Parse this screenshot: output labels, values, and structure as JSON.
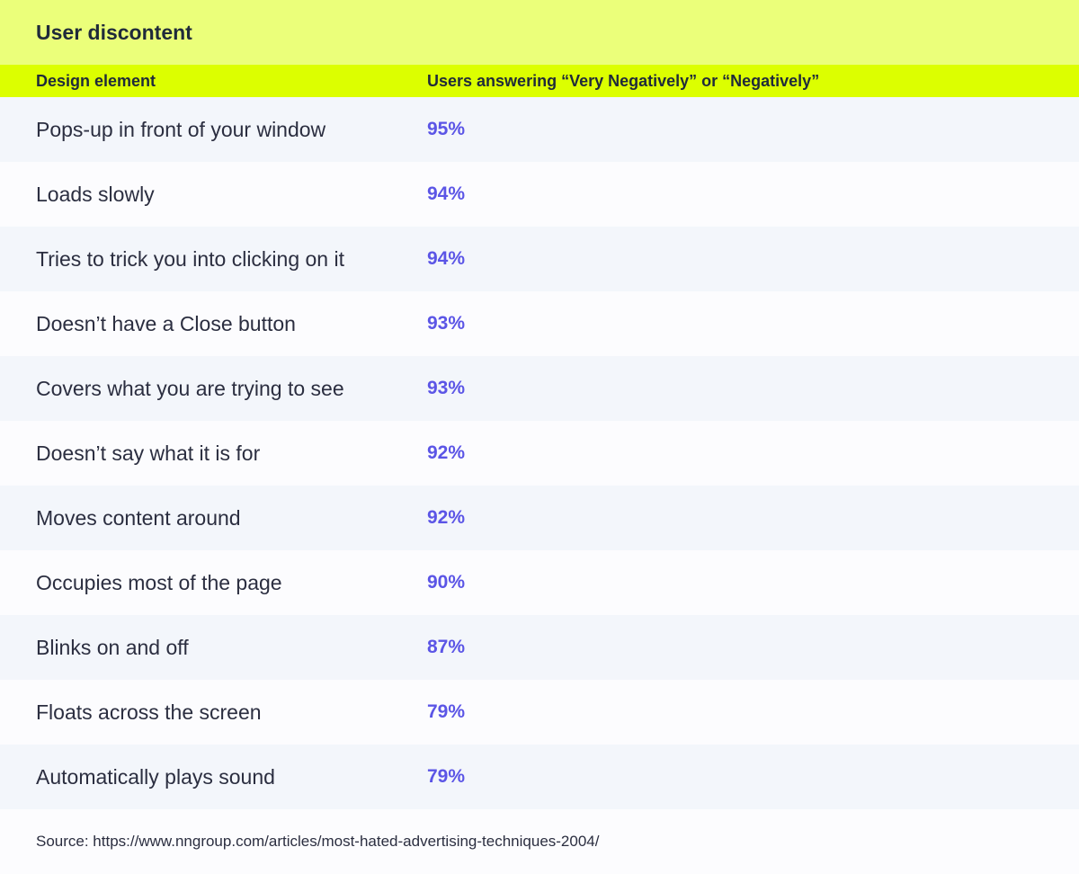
{
  "title": "User discontent",
  "columns": {
    "element": "Design element",
    "share": "Users answering “Very Negatively” or “Negatively”"
  },
  "rows": [
    {
      "element": "Pops-up in front of your window",
      "share": "95%"
    },
    {
      "element": "Loads slowly",
      "share": "94%"
    },
    {
      "element": "Tries to trick you into clicking on it",
      "share": "94%"
    },
    {
      "element": "Doesn’t have a Close button",
      "share": "93%"
    },
    {
      "element": "Covers what you are trying to see",
      "share": "93%"
    },
    {
      "element": "Doesn’t say what it is for",
      "share": "92%"
    },
    {
      "element": "Moves content around",
      "share": "92%"
    },
    {
      "element": "Occupies most of the page",
      "share": "90%"
    },
    {
      "element": "Blinks on and off",
      "share": "87%"
    },
    {
      "element": "Floats across the screen",
      "share": "79%"
    },
    {
      "element": "Automatically plays sound",
      "share": "79%"
    }
  ],
  "source": "Source: https://www.nngroup.com/articles/most-hated-advertising-techniques-2004/",
  "colors": {
    "title_bg": "#ebff7a",
    "header_bg": "#dcff00",
    "value_text": "#5b55e6",
    "row_stripe": "#f3f6fb"
  }
}
